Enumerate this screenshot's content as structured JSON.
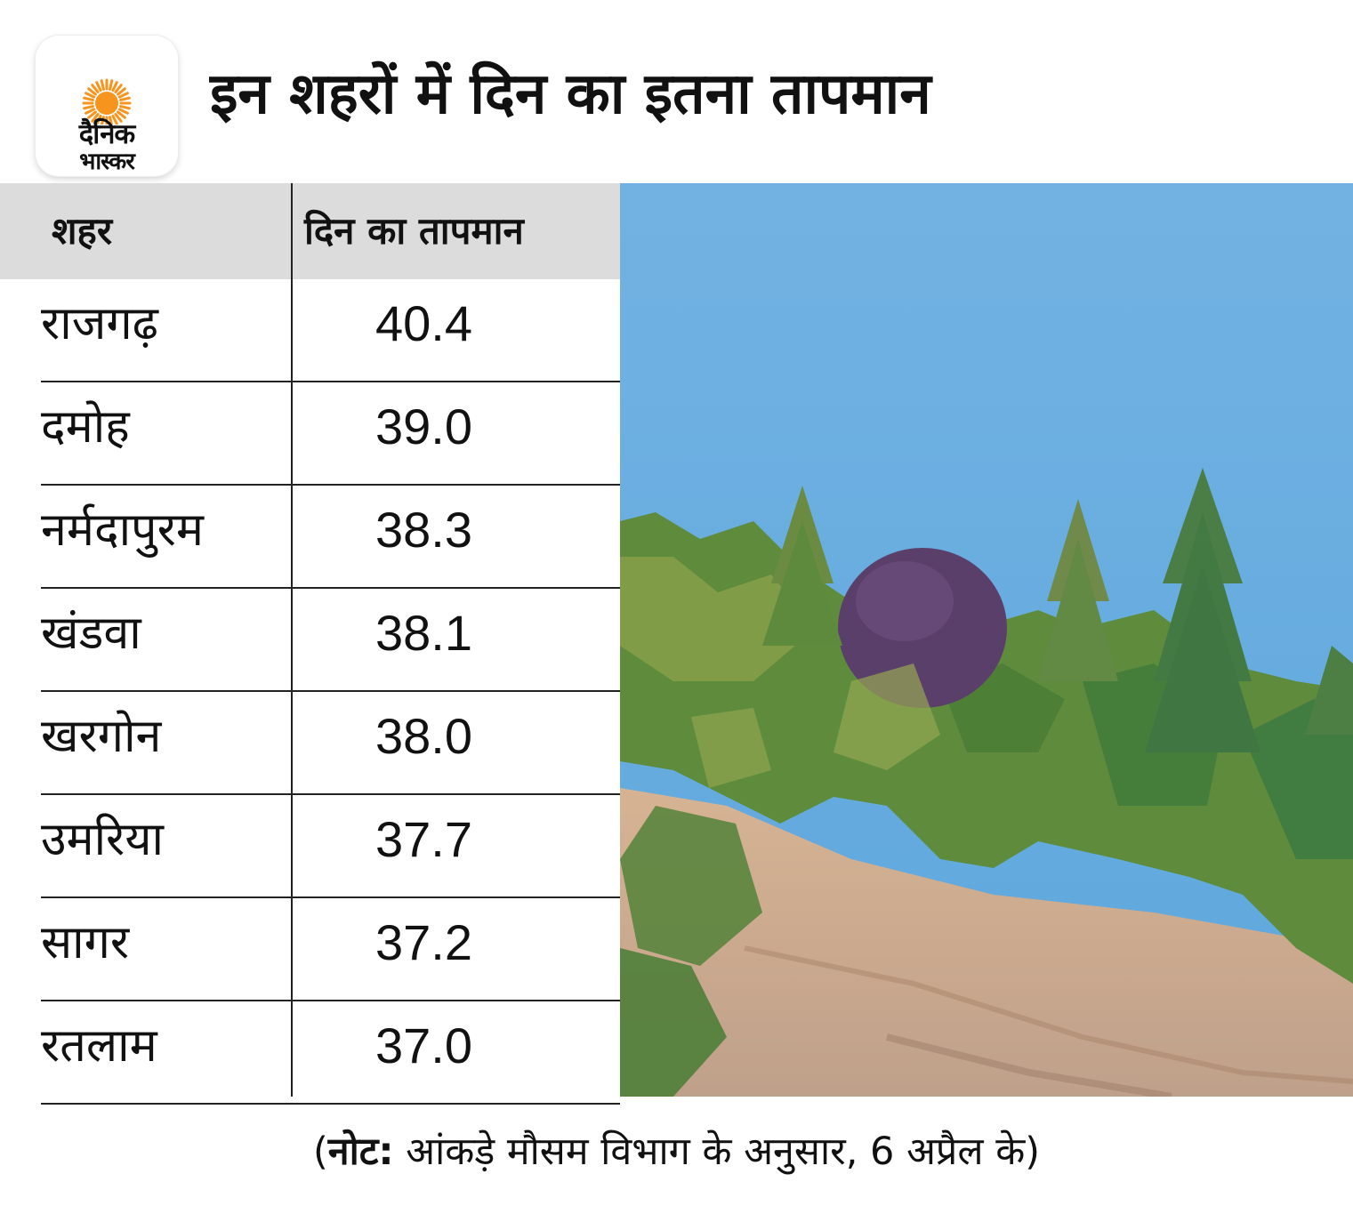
{
  "logo": {
    "line1": "दैनिक",
    "line2": "भास्कर",
    "sun_color": "#f7941d"
  },
  "title": "इन शहरों में दिन का इतना तापमान",
  "table": {
    "headers": [
      "शहर",
      "दिन का तापमान"
    ],
    "rows": [
      {
        "city": "राजगढ़",
        "temp": "40.4"
      },
      {
        "city": "दमोह",
        "temp": "39.0"
      },
      {
        "city": "नर्मदापुरम",
        "temp": "38.3"
      },
      {
        "city": "खंडवा",
        "temp": "38.1"
      },
      {
        "city": "खरगोन",
        "temp": "38.0"
      },
      {
        "city": "उमरिया",
        "temp": "37.7"
      },
      {
        "city": "सागर",
        "temp": "37.2"
      },
      {
        "city": "रतलाम",
        "temp": "37.0"
      }
    ]
  },
  "note": {
    "open": "(",
    "label": "नोट:",
    "text": " आंकड़े मौसम विभाग के अनुसार, 6 अप्रैल के)"
  },
  "photo": {
    "sky_color": "#6aaedf",
    "foliage_color": "#5a8a3a",
    "cliff_color": "#c9a88a",
    "purple_tree_color": "#5b3f6b"
  }
}
